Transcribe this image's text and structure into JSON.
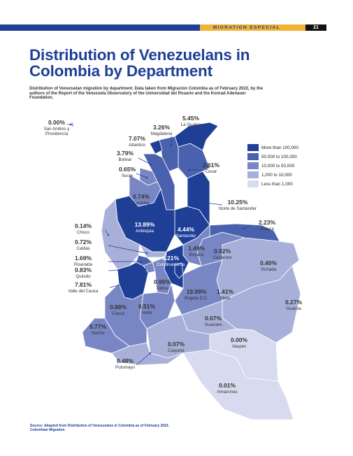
{
  "header": {
    "section_label": "MIGRATION ESPECIAL",
    "page_number": "21"
  },
  "title": "Distribution of Venezuelans in Colombia by Department",
  "subtitle": "Distribution of Venezuelan migration by department. Data taken from Migración Colombia as of February 2022, by the authors of the Report of the Venezuela Observatory of the Universidad del Rosario and the Konrad Adenauer Foundation.",
  "source": "Source: Adapted from Distribution of Venezuelans in Colombia as of February 2022. Colombian Migration",
  "colors": {
    "more_than_100000": "#1f3f97",
    "50000_to_100000": "#4a62ad",
    "10000_to_50000": "#7886c4",
    "1000_to_10000": "#a8b0d9",
    "less_than_1000": "#d8dbef"
  },
  "legend": [
    {
      "label": "More than  100,000",
      "color": "#1f3f97"
    },
    {
      "label": "50,000 to 100,000",
      "color": "#4a62ad"
    },
    {
      "label": "10,000 to 50,000",
      "color": "#7886c4"
    },
    {
      "label": "1,000 to 10,000",
      "color": "#a8b0d9"
    },
    {
      "label": "Less than 1,000",
      "color": "#d8dbef"
    }
  ],
  "departments": {
    "san_andres": {
      "pct": "0.00%",
      "name_line1": "San Andres y",
      "name_line2": "Providencia"
    },
    "la_guajira": {
      "pct": "5.45%",
      "name": "La Guajira"
    },
    "magdalena": {
      "pct": "3.26%",
      "name": "Magdalena"
    },
    "atlantico": {
      "pct": "7.07%",
      "name": "Atlantico"
    },
    "bolivar": {
      "pct": "3.79%",
      "name": "Bolivar"
    },
    "cesar": {
      "pct": "2.61%",
      "name": "Cesar"
    },
    "sucre": {
      "pct": "0.65%",
      "name": "Sucre"
    },
    "cordoba": {
      "pct": "0.74%",
      "name": "Cordoba"
    },
    "norte_santander": {
      "pct": "10.25%",
      "name": "Norte de Santander"
    },
    "arauca": {
      "pct": "2.23%",
      "name": "Arauca"
    },
    "antioquia": {
      "pct": "13.89%",
      "name": "Antioquia"
    },
    "santander": {
      "pct": "4.44%",
      "name": "Santander"
    },
    "choco": {
      "pct": "0.14%",
      "name": "Choco"
    },
    "caldas": {
      "pct": "0.72%",
      "name": "Caldas"
    },
    "risaralda": {
      "pct": "1.69%",
      "name": "Risaralda"
    },
    "quindio": {
      "pct": "0.83%",
      "name": "Quindio"
    },
    "boyaca": {
      "pct": "1.49%",
      "name": "Boyaca"
    },
    "casanare": {
      "pct": "0.92%",
      "name": "Casanare"
    },
    "cundinamarca": {
      "pct": "6.21%",
      "name": "Cundinamarca"
    },
    "vichada": {
      "pct": "0.40%",
      "name": "Vichada"
    },
    "valle": {
      "pct": "7.81%",
      "name": "Valle del Cauca"
    },
    "tolima": {
      "pct": "0.95%",
      "name": "Tolima"
    },
    "bogota": {
      "pct": "19.99%",
      "name": "Bogota D.C."
    },
    "meta": {
      "pct": "1.41%",
      "name": "Meta"
    },
    "guainia": {
      "pct": "0.27%",
      "name": "Guainia"
    },
    "cauca": {
      "pct": "0.88%",
      "name": "Cauca"
    },
    "huila": {
      "pct": "0.51%",
      "name": "Huila"
    },
    "guaviare": {
      "pct": "0.07%",
      "name": "Guaviare"
    },
    "narino": {
      "pct": "0.77%",
      "name": "Nariño"
    },
    "vaupes": {
      "pct": "0.00%",
      "name": "Vaupes"
    },
    "caqueta": {
      "pct": "0.07%",
      "name": "Caqueta"
    },
    "putumayo": {
      "pct": "0.48%",
      "name": "Putumayo"
    },
    "amazonas": {
      "pct": "0.01%",
      "name": "Amazonas"
    }
  }
}
